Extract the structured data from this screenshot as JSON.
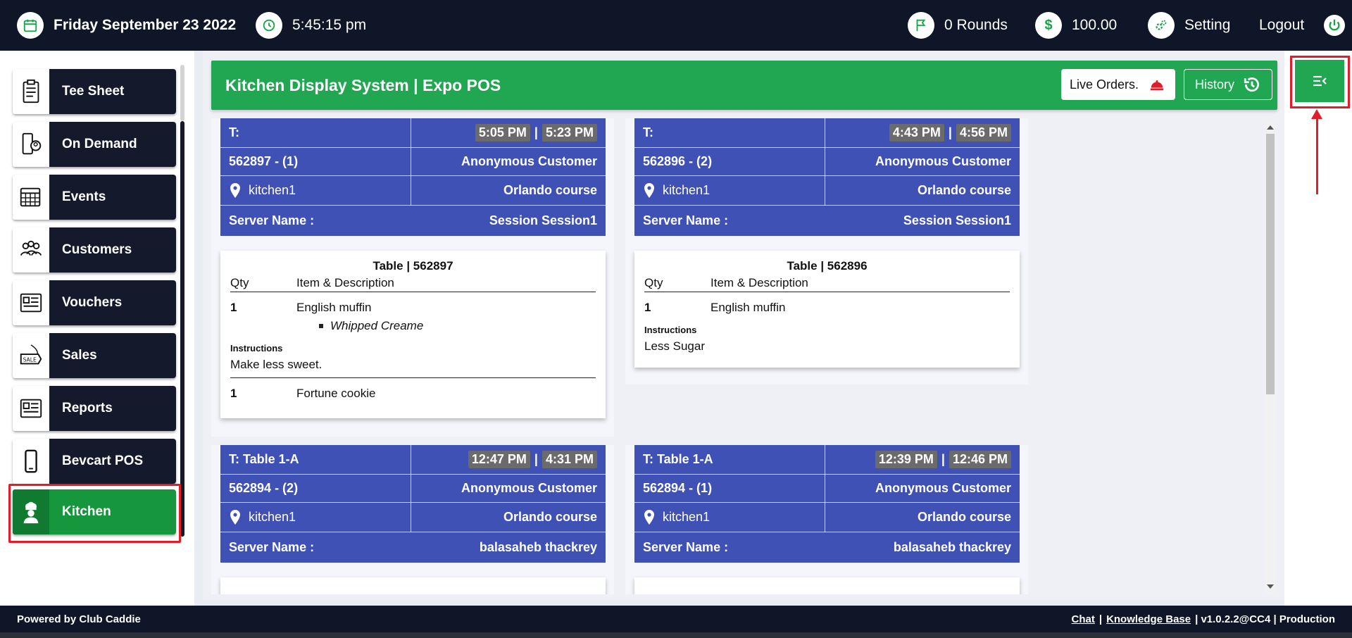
{
  "topbar": {
    "date": "Friday September 23 2022",
    "time": "5:45:15 pm",
    "rounds": "0 Rounds",
    "balance": "100.00",
    "balance_symbol": "$",
    "setting": "Setting",
    "logout": "Logout"
  },
  "sidebar": {
    "items": [
      {
        "label": "Tee Sheet",
        "icon": "clipboard-icon"
      },
      {
        "label": "On Demand",
        "icon": "phone-user-icon"
      },
      {
        "label": "Events",
        "icon": "calendar-icon"
      },
      {
        "label": "Customers",
        "icon": "customers-icon"
      },
      {
        "label": "Vouchers",
        "icon": "voucher-icon"
      },
      {
        "label": "Sales",
        "icon": "sale-tag-icon"
      },
      {
        "label": "Reports",
        "icon": "report-icon"
      },
      {
        "label": "Bevcart POS",
        "icon": "mobile-icon"
      },
      {
        "label": "Kitchen",
        "icon": "chef-icon"
      }
    ],
    "active": "Kitchen"
  },
  "header": {
    "title": "Kitchen Display System | Expo POS",
    "live_orders": "Live Orders.",
    "history": "History"
  },
  "orders": [
    {
      "table_label": "T:",
      "time_start": "5:05 PM",
      "time_sep": "|",
      "time_end": "5:23 PM",
      "order_id": "562897 - (1)",
      "customer": "Anonymous Customer",
      "kitchen": "kitchen1",
      "course": "Orlando course",
      "server_label": "Server Name :",
      "server": "Session Session1",
      "ticket_title": "Table | 562897",
      "col_qty": "Qty",
      "col_item": "Item & Description",
      "line1_qty": "1",
      "line1_item": "English muffin",
      "line1_mod": "Whipped Creame",
      "instr_label": "Instructions",
      "instr": "Make less sweet.",
      "line2_qty": "1",
      "line2_item": "Fortune cookie"
    },
    {
      "table_label": "T:",
      "time_start": "4:43 PM",
      "time_sep": "|",
      "time_end": "4:56 PM",
      "order_id": "562896 - (2)",
      "customer": "Anonymous Customer",
      "kitchen": "kitchen1",
      "course": "Orlando course",
      "server_label": "Server Name :",
      "server": "Session Session1",
      "ticket_title": "Table | 562896",
      "col_qty": "Qty",
      "col_item": "Item & Description",
      "line1_qty": "1",
      "line1_item": "English muffin",
      "instr_label": "Instructions",
      "instr": "Less Sugar"
    },
    {
      "table_label": "T: Table 1-A",
      "time_start": "12:47 PM",
      "time_sep": "|",
      "time_end": "4:31 PM",
      "order_id": "562894 - (2)",
      "customer": "Anonymous Customer",
      "kitchen": "kitchen1",
      "course": "Orlando course",
      "server_label": "Server Name :",
      "server": "balasaheb thackrey"
    },
    {
      "table_label": "T: Table 1-A",
      "time_start": "12:39 PM",
      "time_sep": "|",
      "time_end": "12:46 PM",
      "order_id": "562894 - (1)",
      "customer": "Anonymous Customer",
      "kitchen": "kitchen1",
      "course": "Orlando course",
      "server_label": "Server Name :",
      "server": "balasaheb thackrey"
    }
  ],
  "footer": {
    "powered": "Powered by Club Caddie",
    "chat": "Chat",
    "sep": "|",
    "kb": "Knowledge Base",
    "version": "| v1.0.2.2@CC4 | Production"
  },
  "colors": {
    "topbar": "#0f1628",
    "accent_green": "#21a651",
    "order_blue": "#3f51b5",
    "highlight_red": "#e11d2a"
  }
}
